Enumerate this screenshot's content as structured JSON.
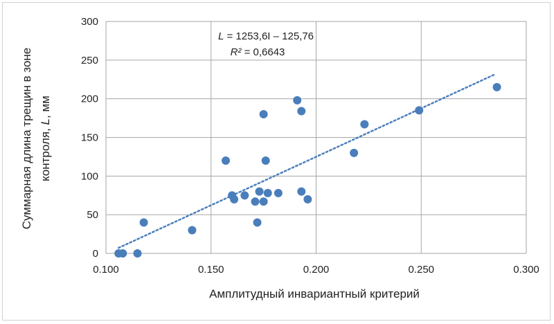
{
  "chart_data": {
    "type": "scatter",
    "title": "",
    "xlabel": "Амплитудный инвариантный критерий",
    "ylabel_line1": "Суммарная длина трещин в зоне",
    "ylabel_line2_prefix": "контроля, ",
    "ylabel_line2_var": "L",
    "ylabel_line2_suffix": ", мм",
    "xlim": [
      0.1,
      0.3
    ],
    "ylim": [
      0,
      300
    ],
    "xticks": [
      "0.100",
      "0.150",
      "0.200",
      "0.250",
      "0.300"
    ],
    "yticks": [
      "0",
      "50",
      "100",
      "150",
      "200",
      "250",
      "300"
    ],
    "grid": true,
    "marker_color": "#4a7ebb",
    "trendline_color": "#4a7ebb",
    "equation": {
      "var": "L",
      "rest": " = 1253,6I – 125,76",
      "r2_var": "R²",
      "r2_rest": " = 0,6643"
    },
    "trendline": {
      "slope": 1253.6,
      "intercept": -125.76,
      "x_range": [
        0.106,
        0.285
      ]
    },
    "points": [
      {
        "x": 0.106,
        "y": 0
      },
      {
        "x": 0.108,
        "y": 0
      },
      {
        "x": 0.115,
        "y": 0
      },
      {
        "x": 0.118,
        "y": 40
      },
      {
        "x": 0.141,
        "y": 30
      },
      {
        "x": 0.157,
        "y": 120
      },
      {
        "x": 0.16,
        "y": 75
      },
      {
        "x": 0.161,
        "y": 70
      },
      {
        "x": 0.166,
        "y": 75
      },
      {
        "x": 0.171,
        "y": 67
      },
      {
        "x": 0.172,
        "y": 40
      },
      {
        "x": 0.173,
        "y": 80
      },
      {
        "x": 0.175,
        "y": 67
      },
      {
        "x": 0.175,
        "y": 180
      },
      {
        "x": 0.176,
        "y": 120
      },
      {
        "x": 0.177,
        "y": 78
      },
      {
        "x": 0.182,
        "y": 78
      },
      {
        "x": 0.191,
        "y": 198
      },
      {
        "x": 0.193,
        "y": 184
      },
      {
        "x": 0.193,
        "y": 80
      },
      {
        "x": 0.196,
        "y": 70
      },
      {
        "x": 0.218,
        "y": 130
      },
      {
        "x": 0.223,
        "y": 167
      },
      {
        "x": 0.249,
        "y": 185
      },
      {
        "x": 0.286,
        "y": 215
      }
    ]
  }
}
